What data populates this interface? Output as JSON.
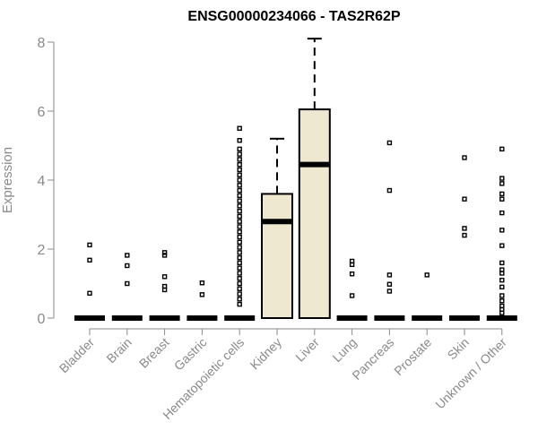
{
  "chart_data": {
    "type": "box",
    "title": "ENSG00000234066 - TAS2R62P",
    "ylabel": "Expression",
    "xlabel": "",
    "ylim": [
      0,
      8
    ],
    "yticks": [
      0,
      2,
      4,
      6,
      8
    ],
    "grid": false,
    "box_fill": "#efe8d0",
    "categories": [
      "Bladder",
      "Brain",
      "Breast",
      "Gastric",
      "Hematopoietic cells",
      "Kidney",
      "Liver",
      "Lung",
      "Pancreas",
      "Prostate",
      "Skin",
      "Unknown / Other"
    ],
    "boxes": [
      {
        "min": 0,
        "q1": 0,
        "median": 0,
        "q3": 0,
        "max": 0,
        "outliers": [
          0.72,
          1.68,
          2.12
        ]
      },
      {
        "min": 0,
        "q1": 0,
        "median": 0,
        "q3": 0,
        "max": 0,
        "outliers": [
          1.0,
          1.52,
          1.82
        ]
      },
      {
        "min": 0,
        "q1": 0,
        "median": 0,
        "q3": 0,
        "max": 0,
        "outliers": [
          0.82,
          0.92,
          1.2,
          1.82,
          1.9
        ]
      },
      {
        "min": 0,
        "q1": 0,
        "median": 0,
        "q3": 0,
        "max": 0,
        "outliers": [
          0.68,
          1.02
        ]
      },
      {
        "min": 0,
        "q1": 0,
        "median": 0,
        "q3": 0,
        "max": 0,
        "outliers": [
          0.4,
          0.55,
          0.7,
          0.85,
          1.0,
          1.15,
          1.3,
          1.45,
          1.6,
          1.75,
          1.9,
          2.05,
          2.2,
          2.35,
          2.5,
          2.65,
          2.8,
          2.95,
          3.1,
          3.25,
          3.4,
          3.55,
          3.7,
          3.85,
          4.0,
          4.15,
          4.3,
          4.45,
          4.6,
          4.75,
          4.9,
          5.15,
          5.5
        ]
      },
      {
        "min": 0,
        "q1": 0,
        "median": 2.8,
        "q3": 3.6,
        "max": 5.2,
        "outliers": []
      },
      {
        "min": 0,
        "q1": 0,
        "median": 4.45,
        "q3": 6.05,
        "max": 8.1,
        "outliers": []
      },
      {
        "min": 0,
        "q1": 0,
        "median": 0,
        "q3": 0,
        "max": 0,
        "outliers": [
          0.65,
          1.28,
          1.55,
          1.65
        ]
      },
      {
        "min": 0,
        "q1": 0,
        "median": 0,
        "q3": 0,
        "max": 0,
        "outliers": [
          0.78,
          0.98,
          1.25,
          3.7,
          5.08
        ]
      },
      {
        "min": 0,
        "q1": 0,
        "median": 0,
        "q3": 0,
        "max": 0,
        "outliers": [
          1.25
        ]
      },
      {
        "min": 0,
        "q1": 0,
        "median": 0,
        "q3": 0,
        "max": 0,
        "outliers": [
          2.4,
          2.6,
          3.45,
          4.65
        ]
      },
      {
        "min": 0,
        "q1": 0,
        "median": 0,
        "q3": 0,
        "max": 0,
        "outliers": [
          0.15,
          0.25,
          0.35,
          0.5,
          0.65,
          0.9,
          1.1,
          1.3,
          1.4,
          1.6,
          2.1,
          2.55,
          3.05,
          3.45,
          3.6,
          3.9,
          4.05,
          4.9
        ]
      }
    ]
  }
}
